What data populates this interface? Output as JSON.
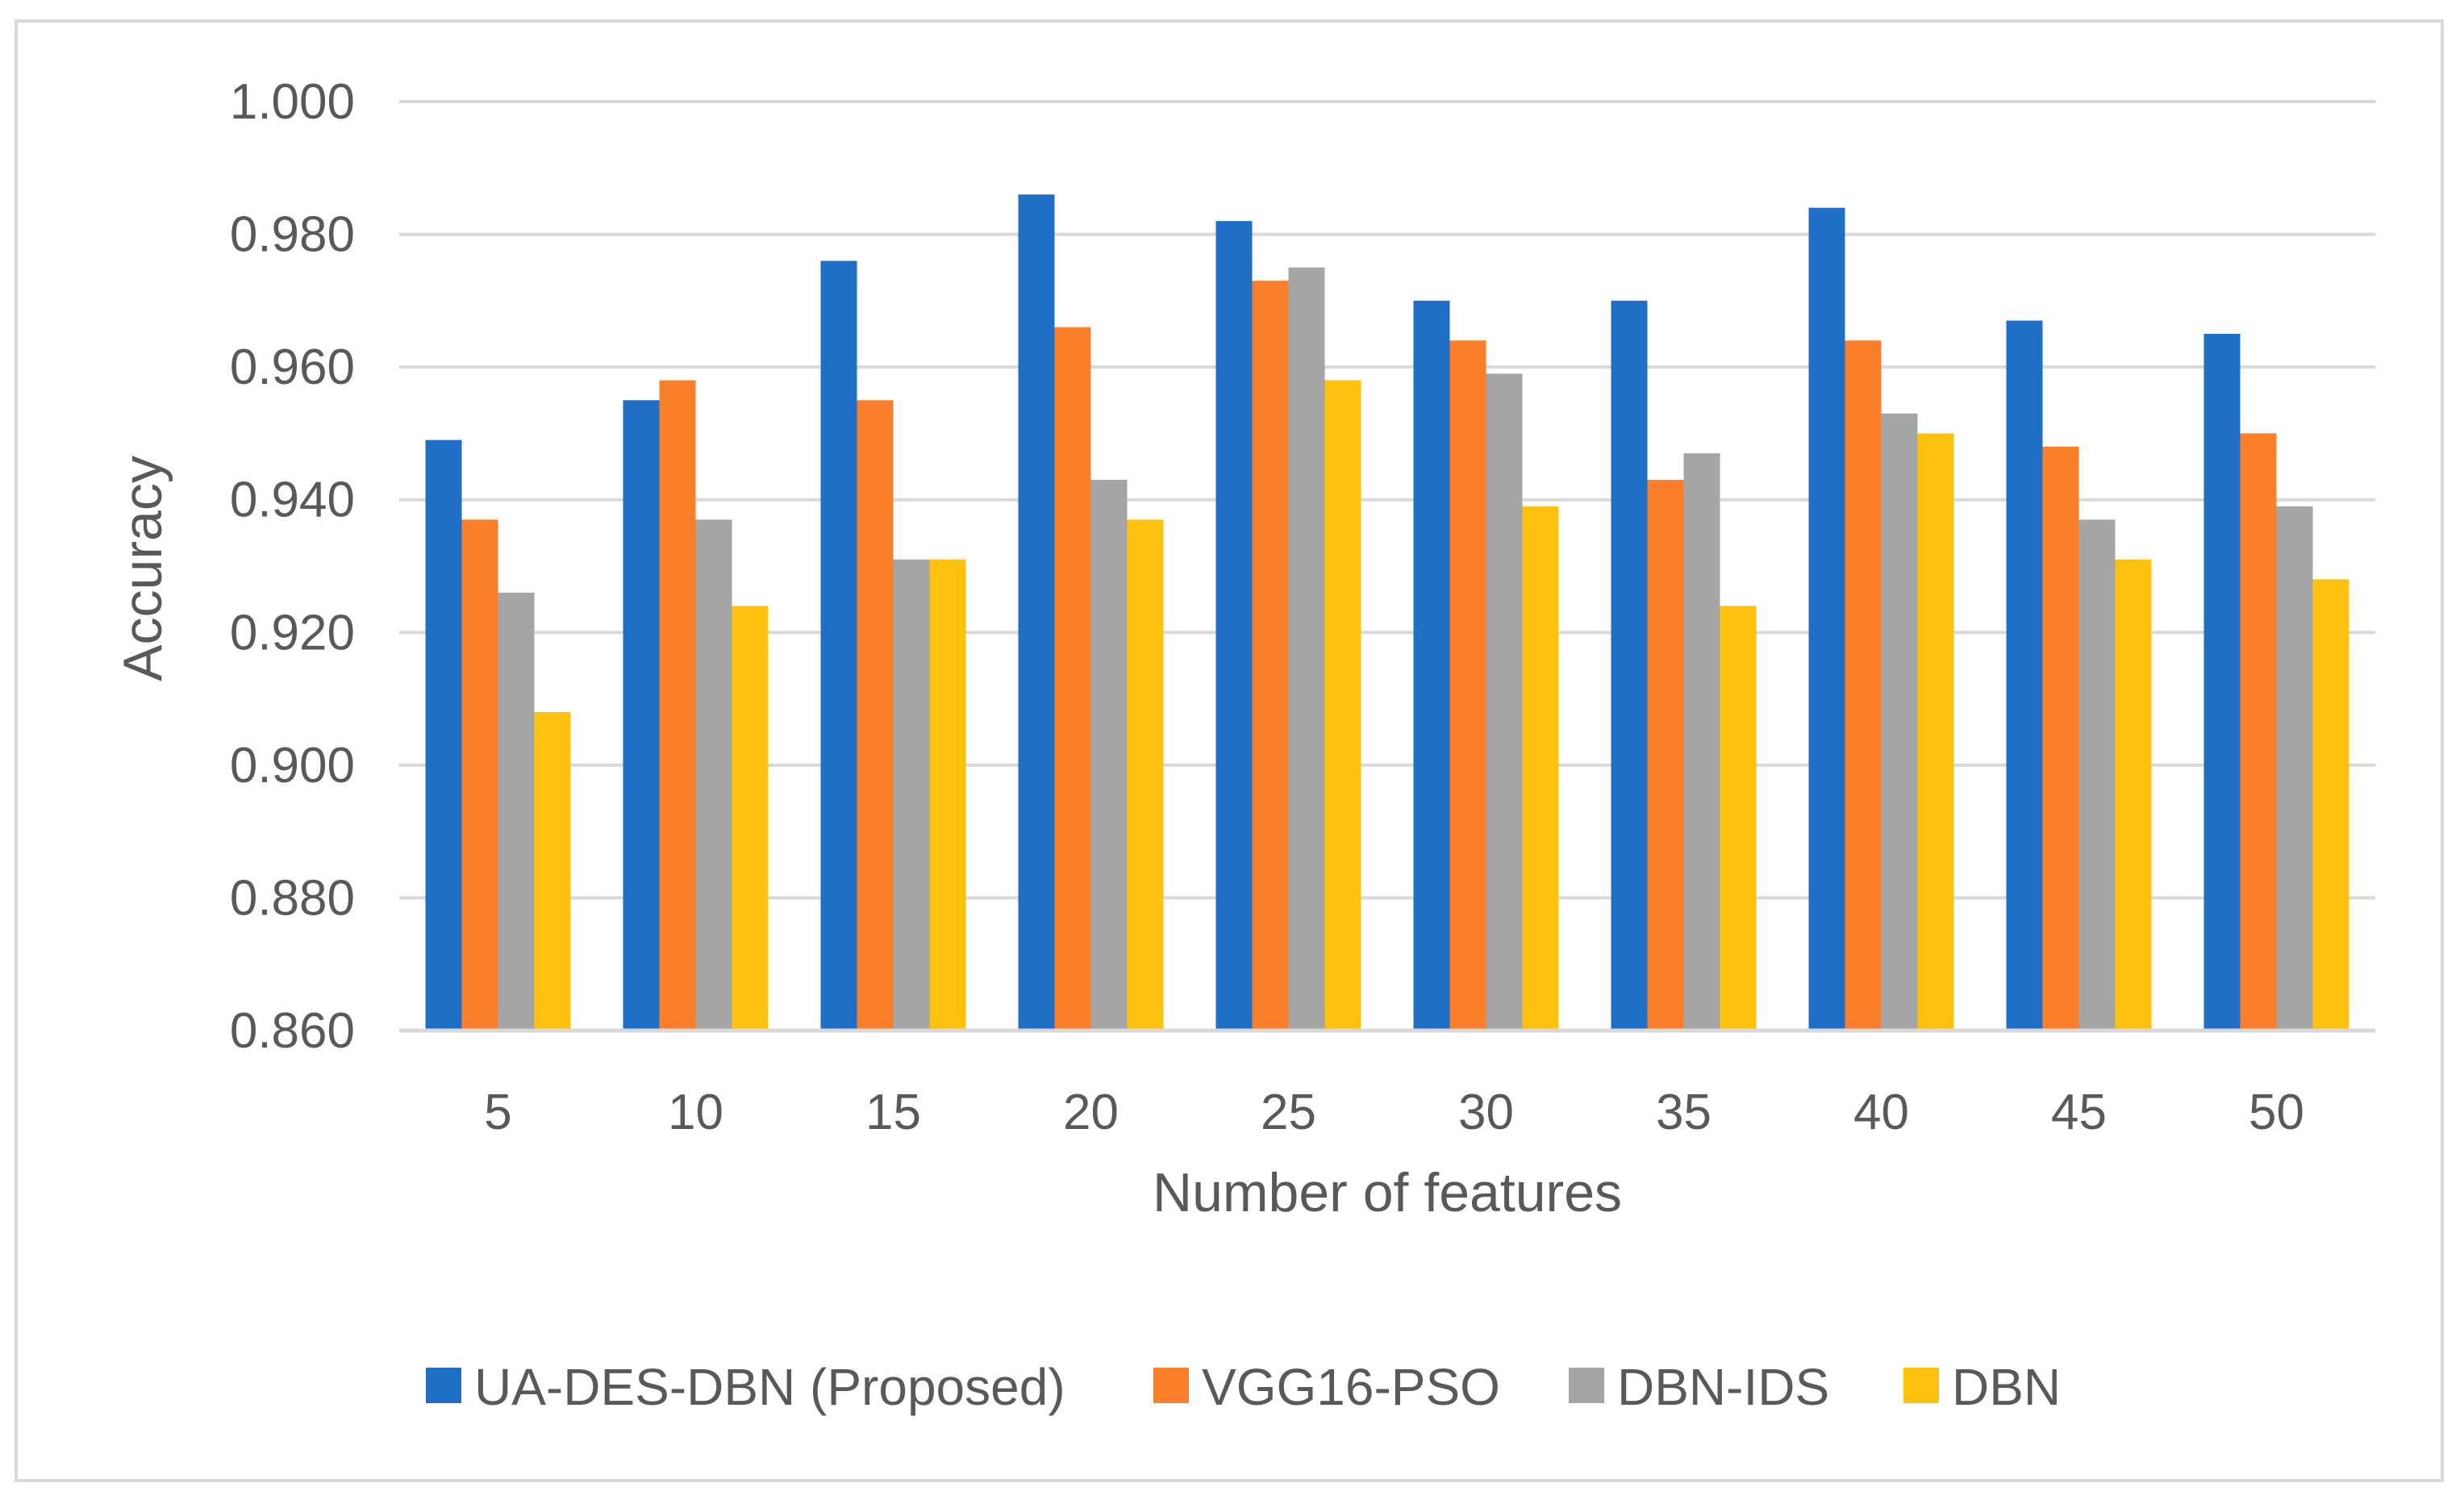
{
  "chart_data": {
    "type": "bar",
    "title": "",
    "xlabel": "Number of features",
    "ylabel": "Accuracy",
    "categories": [
      "5",
      "10",
      "15",
      "20",
      "25",
      "30",
      "35",
      "40",
      "45",
      "50"
    ],
    "ylim": [
      0.86,
      1.0
    ],
    "yticks": [
      "0.860",
      "0.880",
      "0.900",
      "0.920",
      "0.940",
      "0.960",
      "0.980",
      "1.000"
    ],
    "grid": true,
    "legend_position": "bottom",
    "series": [
      {
        "name": "UA-DES-DBN (Proposed)",
        "color": "#1f6fc6",
        "values": [
          0.949,
          0.955,
          0.976,
          0.986,
          0.982,
          0.97,
          0.97,
          0.984,
          0.967,
          0.965
        ]
      },
      {
        "name": "VGG16-PSO",
        "color": "#fb7f2a",
        "values": [
          0.937,
          0.958,
          0.955,
          0.966,
          0.973,
          0.964,
          0.943,
          0.964,
          0.948,
          0.95
        ]
      },
      {
        "name": "DBN-IDS",
        "color": "#a5a5a5",
        "values": [
          0.926,
          0.937,
          0.931,
          0.943,
          0.975,
          0.959,
          0.947,
          0.953,
          0.937,
          0.939
        ]
      },
      {
        "name": "DBN",
        "color": "#fdc10e",
        "values": [
          0.908,
          0.924,
          0.931,
          0.937,
          0.958,
          0.939,
          0.924,
          0.95,
          0.931,
          0.928
        ]
      }
    ]
  }
}
